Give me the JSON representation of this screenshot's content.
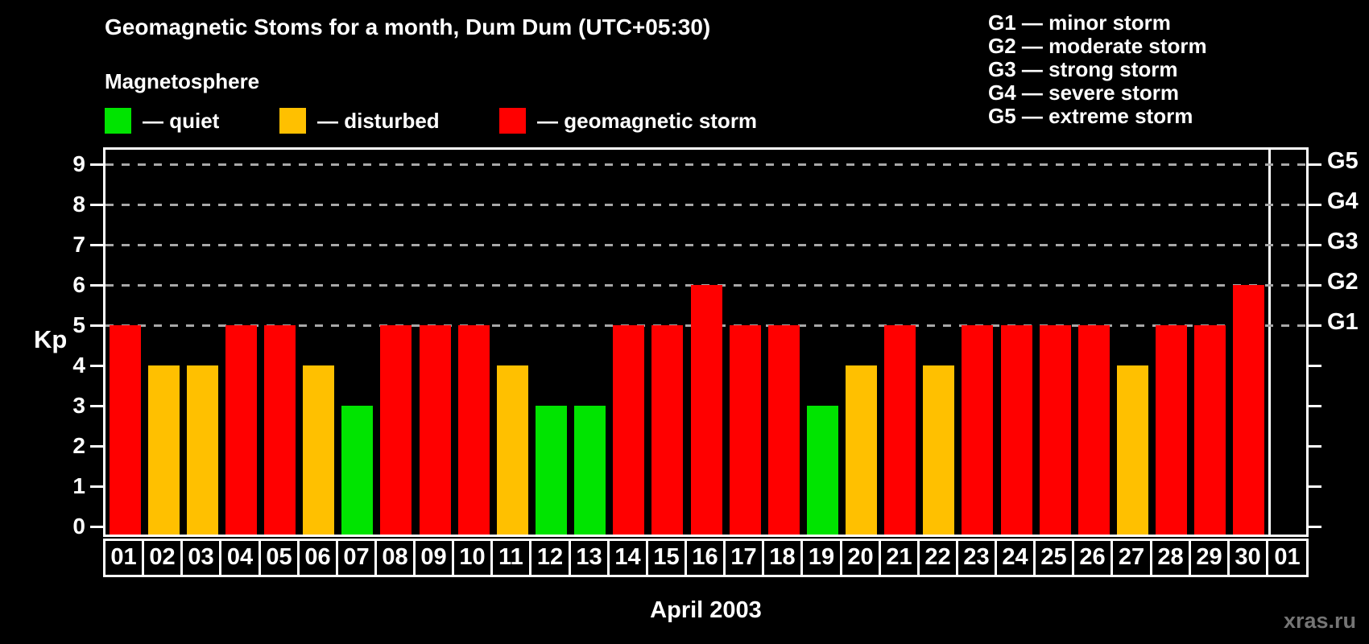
{
  "magnetosphere": {
    "title": "Magnetosphere",
    "items": [
      {
        "key": "quiet",
        "label": "— quiet"
      },
      {
        "key": "disturbed",
        "label": "— disturbed"
      },
      {
        "key": "storm",
        "label": "— geomagnetic storm"
      }
    ]
  },
  "g_legend": {
    "lines": [
      "G1 — minor storm",
      "G2 — moderate storm",
      "G3 — strong storm",
      "G4 — severe storm",
      "G5 — extreme storm"
    ]
  },
  "watermark": "xras.ru",
  "colors": {
    "quiet": "#00e400",
    "disturbed": "#ffc000",
    "storm": "#ff0000",
    "grid": "#a8a8a8",
    "axis": "#ffffff",
    "background": "#000000",
    "watermark": "#757575"
  },
  "chart_data": {
    "type": "bar",
    "title": "Geomagnetic Stoms for a month, Dum Dum (UTC+05:30)",
    "xlabel": "April 2003",
    "ylabel": "Kp",
    "ylim": [
      0,
      9
    ],
    "yticks": [
      0,
      1,
      2,
      3,
      4,
      5,
      6,
      7,
      8,
      9
    ],
    "gridline_levels": [
      5,
      6,
      7,
      8,
      9
    ],
    "grid": "dashed horizontal lines at Kp 5-9",
    "legend_position": "top",
    "right_axis": [
      {
        "kp": 5,
        "label": "G1"
      },
      {
        "kp": 6,
        "label": "G2"
      },
      {
        "kp": 7,
        "label": "G3"
      },
      {
        "kp": 8,
        "label": "G4"
      },
      {
        "kp": 9,
        "label": "G5"
      }
    ],
    "categories": [
      "01",
      "02",
      "03",
      "04",
      "05",
      "06",
      "07",
      "08",
      "09",
      "10",
      "11",
      "12",
      "13",
      "14",
      "15",
      "16",
      "17",
      "18",
      "19",
      "20",
      "21",
      "22",
      "23",
      "24",
      "25",
      "26",
      "27",
      "28",
      "29",
      "30",
      "01"
    ],
    "values": [
      5,
      4,
      4,
      5,
      5,
      4,
      3,
      5,
      5,
      5,
      4,
      3,
      3,
      5,
      5,
      6,
      5,
      5,
      3,
      4,
      5,
      4,
      5,
      5,
      5,
      5,
      4,
      5,
      5,
      6,
      null
    ],
    "levels": [
      "storm",
      "disturbed",
      "disturbed",
      "storm",
      "storm",
      "disturbed",
      "quiet",
      "storm",
      "storm",
      "storm",
      "disturbed",
      "quiet",
      "quiet",
      "storm",
      "storm",
      "storm",
      "storm",
      "storm",
      "quiet",
      "disturbed",
      "storm",
      "disturbed",
      "storm",
      "storm",
      "storm",
      "storm",
      "disturbed",
      "storm",
      "storm",
      "storm",
      null
    ]
  }
}
